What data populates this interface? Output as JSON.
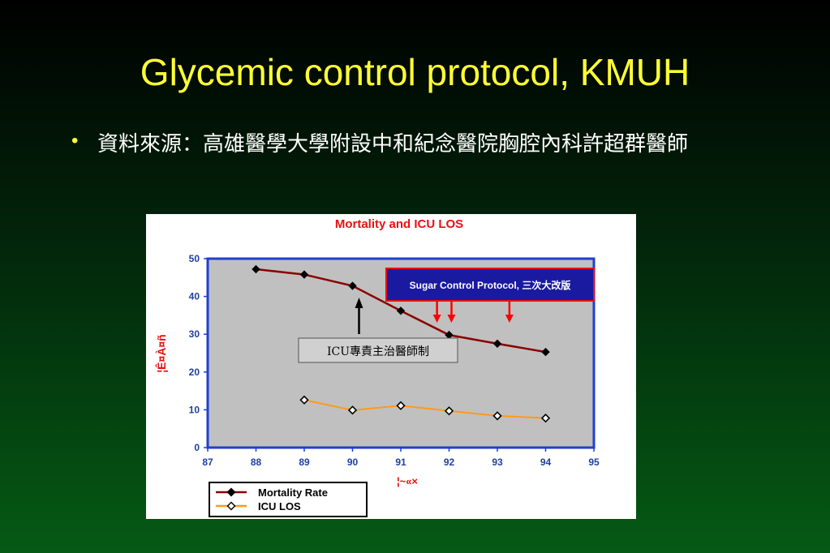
{
  "slide": {
    "title": "Glycemic control protocol, KMUH",
    "bullet_marker": "•",
    "bullet_text": "資料來源：高雄醫學大學附設中和紀念醫院胸腔內科許超群醫師"
  },
  "chart_data": {
    "type": "line",
    "title": "Mortality and ICU  LOS",
    "xlabel": "¦~«×",
    "ylabel": "¦Ê¤À¤ñ",
    "x": [
      87,
      88,
      89,
      90,
      91,
      92,
      93,
      94,
      95
    ],
    "xlim": [
      87,
      95
    ],
    "ylim": [
      0,
      50
    ],
    "yticks": [
      0,
      10,
      20,
      30,
      40,
      50
    ],
    "grid": false,
    "legend_position": "bottom-left",
    "series": [
      {
        "name": "Mortality Rate",
        "color": "#8b0000",
        "marker": "filled-diamond",
        "points": [
          [
            88,
            47.2
          ],
          [
            89,
            45.8
          ],
          [
            90,
            42.8
          ],
          [
            91,
            36.2
          ],
          [
            92,
            29.8
          ],
          [
            93,
            27.5
          ],
          [
            94,
            25.3
          ]
        ]
      },
      {
        "name": "ICU LOS",
        "color": "#ff9a1a",
        "marker": "open-diamond",
        "points": [
          [
            89,
            12.6
          ],
          [
            90,
            9.9
          ],
          [
            91,
            11.1
          ],
          [
            92,
            9.7
          ],
          [
            93,
            8.4
          ],
          [
            94,
            7.8
          ]
        ]
      }
    ],
    "annotations": [
      {
        "text": "ICU專責主治醫師制",
        "arrow_x": 90,
        "arrow_color": "#000000"
      },
      {
        "text": "Sugar Control Protocol, 三次大改版",
        "arrow_xs": [
          91.75,
          92.05,
          93.25
        ],
        "arrow_color": "#ff0000"
      }
    ]
  }
}
